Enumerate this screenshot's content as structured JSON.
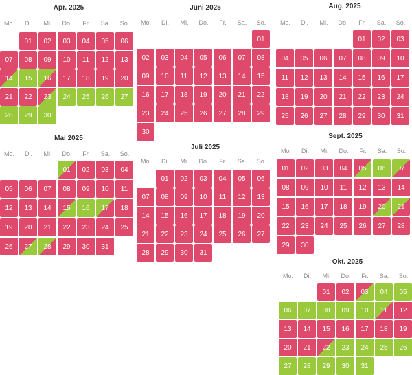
{
  "colors": {
    "booked": "#df4a6c",
    "free": "#9bc93c"
  },
  "status_codes": {
    "b": "booked",
    "f": "free",
    "h1": "booked-then-free (split)",
    "h2": "free-then-booked (split)"
  },
  "months": [
    {
      "title": "Apr. 2025",
      "weekdays": [
        "Mo.",
        "Di.",
        "Mi.",
        "Do.",
        "Fr.",
        "Sa.",
        "So."
      ],
      "days": [
        {
          "d": "01",
          "s": "b"
        },
        {
          "d": "02",
          "s": "b"
        },
        {
          "d": "03",
          "s": "b"
        },
        {
          "d": "04",
          "s": "b"
        },
        {
          "d": "05",
          "s": "b"
        },
        {
          "d": "06",
          "s": "b"
        },
        {
          "d": "07",
          "s": "b"
        },
        {
          "d": "08",
          "s": "b"
        },
        {
          "d": "09",
          "s": "b"
        },
        {
          "d": "10",
          "s": "b"
        },
        {
          "d": "11",
          "s": "b"
        },
        {
          "d": "12",
          "s": "b"
        },
        {
          "d": "13",
          "s": "b"
        },
        {
          "d": "14",
          "s": "h1"
        },
        {
          "d": "15",
          "s": "f"
        },
        {
          "d": "16",
          "s": "h2"
        },
        {
          "d": "17",
          "s": "b"
        },
        {
          "d": "18",
          "s": "b"
        },
        {
          "d": "19",
          "s": "b"
        },
        {
          "d": "20",
          "s": "b"
        },
        {
          "d": "21",
          "s": "b"
        },
        {
          "d": "22",
          "s": "b"
        },
        {
          "d": "23",
          "s": "h1"
        },
        {
          "d": "24",
          "s": "f"
        },
        {
          "d": "25",
          "s": "f"
        },
        {
          "d": "26",
          "s": "f"
        },
        {
          "d": "27",
          "s": "f"
        },
        {
          "d": "28",
          "s": "f"
        },
        {
          "d": "29",
          "s": "f"
        },
        {
          "d": "30",
          "s": "f"
        }
      ]
    },
    {
      "title": "Juni 2025",
      "weekdays": [
        "Mo.",
        "Di.",
        "Mi.",
        "Do.",
        "Fr.",
        "Sa.",
        "So."
      ],
      "days": [
        {
          "d": "01",
          "s": "b"
        },
        {
          "d": "02",
          "s": "b"
        },
        {
          "d": "03",
          "s": "b"
        },
        {
          "d": "04",
          "s": "b"
        },
        {
          "d": "05",
          "s": "b"
        },
        {
          "d": "06",
          "s": "b"
        },
        {
          "d": "07",
          "s": "b"
        },
        {
          "d": "08",
          "s": "b"
        },
        {
          "d": "09",
          "s": "b"
        },
        {
          "d": "10",
          "s": "b"
        },
        {
          "d": "11",
          "s": "b"
        },
        {
          "d": "12",
          "s": "b"
        },
        {
          "d": "13",
          "s": "b"
        },
        {
          "d": "14",
          "s": "b"
        },
        {
          "d": "15",
          "s": "b"
        },
        {
          "d": "16",
          "s": "b"
        },
        {
          "d": "17",
          "s": "b"
        },
        {
          "d": "18",
          "s": "b"
        },
        {
          "d": "19",
          "s": "b"
        },
        {
          "d": "20",
          "s": "b"
        },
        {
          "d": "21",
          "s": "b"
        },
        {
          "d": "22",
          "s": "b"
        },
        {
          "d": "23",
          "s": "b"
        },
        {
          "d": "24",
          "s": "b"
        },
        {
          "d": "25",
          "s": "b"
        },
        {
          "d": "26",
          "s": "b"
        },
        {
          "d": "27",
          "s": "b"
        },
        {
          "d": "28",
          "s": "b"
        },
        {
          "d": "29",
          "s": "b"
        },
        {
          "d": "30",
          "s": "b"
        }
      ]
    },
    {
      "title": "Aug. 2025",
      "weekdays": [
        "Mo.",
        "Di.",
        "Mi.",
        "Do.",
        "Fr.",
        "Sa.",
        "So."
      ],
      "days": [
        {
          "d": "01",
          "s": "b"
        },
        {
          "d": "02",
          "s": "b"
        },
        {
          "d": "03",
          "s": "b"
        },
        {
          "d": "04",
          "s": "b"
        },
        {
          "d": "05",
          "s": "b"
        },
        {
          "d": "06",
          "s": "b"
        },
        {
          "d": "07",
          "s": "b"
        },
        {
          "d": "08",
          "s": "b"
        },
        {
          "d": "09",
          "s": "b"
        },
        {
          "d": "10",
          "s": "b"
        },
        {
          "d": "11",
          "s": "b"
        },
        {
          "d": "12",
          "s": "b"
        },
        {
          "d": "13",
          "s": "b"
        },
        {
          "d": "14",
          "s": "b"
        },
        {
          "d": "15",
          "s": "b"
        },
        {
          "d": "16",
          "s": "b"
        },
        {
          "d": "17",
          "s": "b"
        },
        {
          "d": "18",
          "s": "b"
        },
        {
          "d": "19",
          "s": "b"
        },
        {
          "d": "20",
          "s": "b"
        },
        {
          "d": "21",
          "s": "b"
        },
        {
          "d": "22",
          "s": "b"
        },
        {
          "d": "23",
          "s": "b"
        },
        {
          "d": "24",
          "s": "b"
        },
        {
          "d": "25",
          "s": "b"
        },
        {
          "d": "26",
          "s": "b"
        },
        {
          "d": "27",
          "s": "b"
        },
        {
          "d": "28",
          "s": "b"
        },
        {
          "d": "29",
          "s": "b"
        },
        {
          "d": "30",
          "s": "b"
        },
        {
          "d": "31",
          "s": "b"
        }
      ]
    },
    {
      "title": "Mai 2025",
      "weekdays": [
        "Mo.",
        "Di.",
        "Mi.",
        "Do.",
        "Fr.",
        "Sa.",
        "So."
      ],
      "days": [
        {
          "d": "01",
          "s": "h2"
        },
        {
          "d": "02",
          "s": "b"
        },
        {
          "d": "03",
          "s": "b"
        },
        {
          "d": "04",
          "s": "b"
        },
        {
          "d": "05",
          "s": "b"
        },
        {
          "d": "06",
          "s": "b"
        },
        {
          "d": "07",
          "s": "b"
        },
        {
          "d": "08",
          "s": "b"
        },
        {
          "d": "09",
          "s": "b"
        },
        {
          "d": "10",
          "s": "b"
        },
        {
          "d": "11",
          "s": "b"
        },
        {
          "d": "12",
          "s": "b"
        },
        {
          "d": "13",
          "s": "b"
        },
        {
          "d": "14",
          "s": "b"
        },
        {
          "d": "15",
          "s": "h1"
        },
        {
          "d": "16",
          "s": "f"
        },
        {
          "d": "17",
          "s": "h2"
        },
        {
          "d": "18",
          "s": "b"
        },
        {
          "d": "19",
          "s": "b"
        },
        {
          "d": "20",
          "s": "b"
        },
        {
          "d": "21",
          "s": "b"
        },
        {
          "d": "22",
          "s": "b"
        },
        {
          "d": "23",
          "s": "b"
        },
        {
          "d": "24",
          "s": "b"
        },
        {
          "d": "25",
          "s": "b"
        },
        {
          "d": "26",
          "s": "b"
        },
        {
          "d": "27",
          "s": "h1"
        },
        {
          "d": "28",
          "s": "h2"
        },
        {
          "d": "29",
          "s": "b"
        },
        {
          "d": "30",
          "s": "b"
        },
        {
          "d": "31",
          "s": "b"
        }
      ]
    },
    {
      "title": "Juli 2025",
      "weekdays": [
        "Mo.",
        "Di.",
        "Mi.",
        "Do.",
        "Fr.",
        "Sa.",
        "So."
      ],
      "days": [
        {
          "d": "01",
          "s": "b"
        },
        {
          "d": "02",
          "s": "b"
        },
        {
          "d": "03",
          "s": "b"
        },
        {
          "d": "04",
          "s": "b"
        },
        {
          "d": "05",
          "s": "b"
        },
        {
          "d": "06",
          "s": "b"
        },
        {
          "d": "07",
          "s": "b"
        },
        {
          "d": "08",
          "s": "b"
        },
        {
          "d": "09",
          "s": "b"
        },
        {
          "d": "10",
          "s": "b"
        },
        {
          "d": "11",
          "s": "b"
        },
        {
          "d": "12",
          "s": "b"
        },
        {
          "d": "13",
          "s": "b"
        },
        {
          "d": "14",
          "s": "b"
        },
        {
          "d": "15",
          "s": "b"
        },
        {
          "d": "16",
          "s": "b"
        },
        {
          "d": "17",
          "s": "b"
        },
        {
          "d": "18",
          "s": "b"
        },
        {
          "d": "19",
          "s": "b"
        },
        {
          "d": "20",
          "s": "b"
        },
        {
          "d": "21",
          "s": "b"
        },
        {
          "d": "22",
          "s": "b"
        },
        {
          "d": "23",
          "s": "b"
        },
        {
          "d": "24",
          "s": "b"
        },
        {
          "d": "25",
          "s": "b"
        },
        {
          "d": "26",
          "s": "b"
        },
        {
          "d": "27",
          "s": "b"
        },
        {
          "d": "28",
          "s": "b"
        },
        {
          "d": "29",
          "s": "b"
        },
        {
          "d": "30",
          "s": "b"
        },
        {
          "d": "31",
          "s": "b"
        }
      ]
    },
    {
      "title": "Sept. 2025",
      "weekdays": [
        "Mo.",
        "Di.",
        "Mi.",
        "Do.",
        "Fr.",
        "Sa.",
        "So."
      ],
      "days": [
        {
          "d": "01",
          "s": "b"
        },
        {
          "d": "02",
          "s": "b"
        },
        {
          "d": "03",
          "s": "b"
        },
        {
          "d": "04",
          "s": "b"
        },
        {
          "d": "05",
          "s": "h1"
        },
        {
          "d": "06",
          "s": "f"
        },
        {
          "d": "07",
          "s": "h2"
        },
        {
          "d": "08",
          "s": "b"
        },
        {
          "d": "09",
          "s": "b"
        },
        {
          "d": "10",
          "s": "b"
        },
        {
          "d": "11",
          "s": "b"
        },
        {
          "d": "12",
          "s": "b"
        },
        {
          "d": "13",
          "s": "b"
        },
        {
          "d": "14",
          "s": "b"
        },
        {
          "d": "15",
          "s": "b"
        },
        {
          "d": "16",
          "s": "b"
        },
        {
          "d": "17",
          "s": "b"
        },
        {
          "d": "18",
          "s": "b"
        },
        {
          "d": "19",
          "s": "b"
        },
        {
          "d": "20",
          "s": "h1"
        },
        {
          "d": "21",
          "s": "h2"
        },
        {
          "d": "22",
          "s": "b"
        },
        {
          "d": "23",
          "s": "b"
        },
        {
          "d": "24",
          "s": "b"
        },
        {
          "d": "25",
          "s": "b"
        },
        {
          "d": "26",
          "s": "b"
        },
        {
          "d": "27",
          "s": "b"
        },
        {
          "d": "28",
          "s": "b"
        },
        {
          "d": "29",
          "s": "b"
        },
        {
          "d": "30",
          "s": "b"
        }
      ]
    },
    {
      "title": "Okt. 2025",
      "weekdays": [
        "Mo.",
        "Di.",
        "Mi.",
        "Do.",
        "Fr.",
        "Sa.",
        "So."
      ],
      "days": [
        {
          "d": "01",
          "s": "b"
        },
        {
          "d": "02",
          "s": "b"
        },
        {
          "d": "03",
          "s": "h1"
        },
        {
          "d": "04",
          "s": "f"
        },
        {
          "d": "05",
          "s": "f"
        },
        {
          "d": "06",
          "s": "f"
        },
        {
          "d": "07",
          "s": "f"
        },
        {
          "d": "08",
          "s": "f"
        },
        {
          "d": "09",
          "s": "f"
        },
        {
          "d": "10",
          "s": "f"
        },
        {
          "d": "11",
          "s": "h2"
        },
        {
          "d": "12",
          "s": "b"
        },
        {
          "d": "13",
          "s": "b"
        },
        {
          "d": "14",
          "s": "b"
        },
        {
          "d": "15",
          "s": "b"
        },
        {
          "d": "16",
          "s": "b"
        },
        {
          "d": "17",
          "s": "b"
        },
        {
          "d": "18",
          "s": "b"
        },
        {
          "d": "19",
          "s": "b"
        },
        {
          "d": "20",
          "s": "b"
        },
        {
          "d": "21",
          "s": "b"
        },
        {
          "d": "22",
          "s": "h1"
        },
        {
          "d": "23",
          "s": "f"
        },
        {
          "d": "24",
          "s": "f"
        },
        {
          "d": "25",
          "s": "f"
        },
        {
          "d": "26",
          "s": "f"
        },
        {
          "d": "27",
          "s": "f"
        },
        {
          "d": "28",
          "s": "f"
        },
        {
          "d": "29",
          "s": "f"
        },
        {
          "d": "30",
          "s": "f"
        },
        {
          "d": "31",
          "s": "f"
        }
      ]
    }
  ]
}
